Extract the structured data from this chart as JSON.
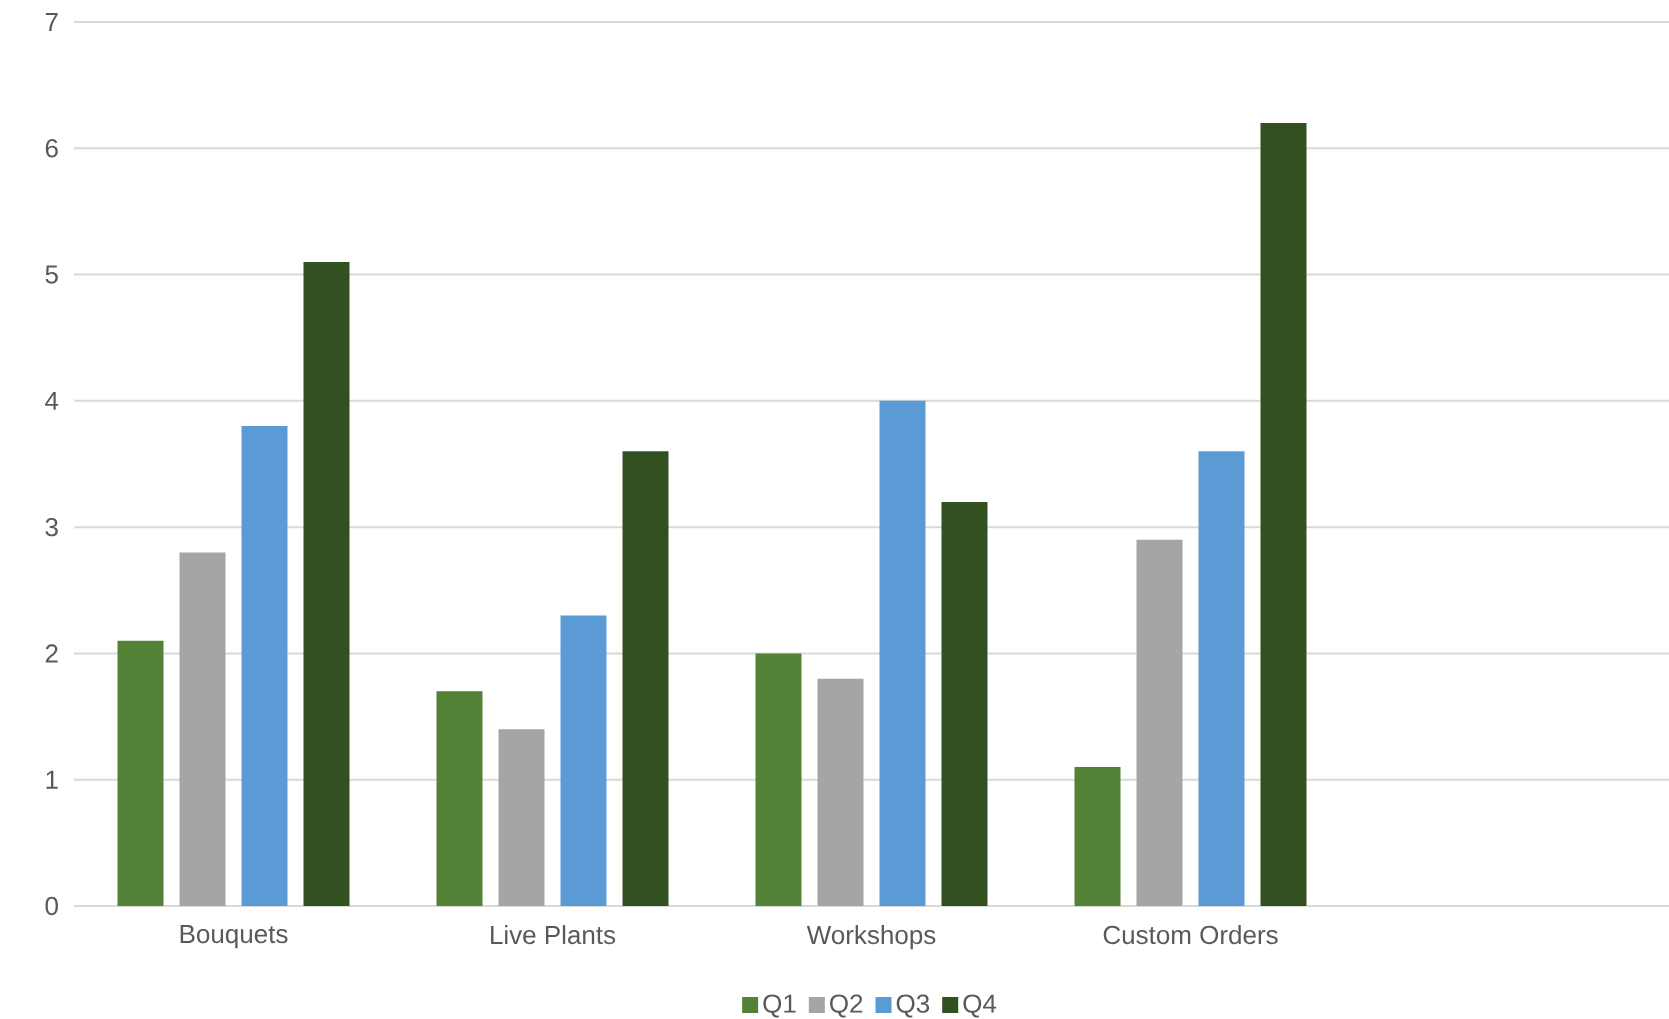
{
  "chart_data": {
    "type": "bar",
    "categories": [
      "Bouquets",
      "Live Plants",
      "Workshops",
      "Custom Orders",
      null
    ],
    "series": [
      {
        "name": "Q1",
        "color": "#538135",
        "values": [
          2.1,
          1.7,
          2.0,
          1.1,
          null
        ]
      },
      {
        "name": "Q2",
        "color": "#a5a5a5",
        "values": [
          2.8,
          1.4,
          1.8,
          2.9,
          null
        ]
      },
      {
        "name": "Q3",
        "color": "#5b9bd5",
        "values": [
          3.8,
          2.3,
          4.0,
          3.6,
          null
        ]
      },
      {
        "name": "Q4",
        "color": "#325020",
        "values": [
          5.1,
          3.6,
          3.2,
          6.2,
          null
        ]
      }
    ],
    "ylim": [
      0,
      7
    ],
    "yticks": [
      0,
      1,
      2,
      3,
      4,
      5,
      6,
      7
    ],
    "grid": "y",
    "legend": "bottom"
  }
}
